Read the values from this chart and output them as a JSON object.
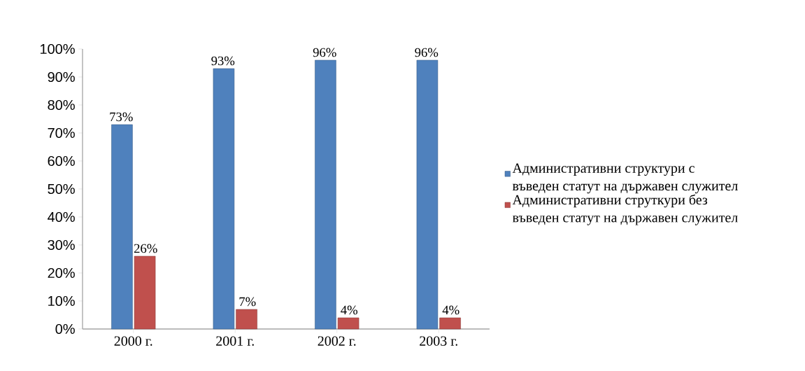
{
  "chart_data": {
    "type": "bar",
    "categories": [
      "2000 г.",
      "2001 г.",
      "2002 г.",
      "2003 г."
    ],
    "series": [
      {
        "name": "Административни структури с въведен статут на държавен служител",
        "color": "#4f81bd",
        "values": [
          73,
          93,
          96,
          96
        ],
        "value_labels": [
          "73%",
          "93%",
          "96%",
          "96%"
        ]
      },
      {
        "name": "Административни струткури без въведен статут на държавен служител",
        "color": "#c0504d",
        "values": [
          26,
          7,
          4,
          4
        ],
        "value_labels": [
          "26%",
          "7%",
          "4%",
          "4%"
        ]
      }
    ],
    "ylim": [
      0,
      100
    ],
    "yticks": [
      {
        "value": 0,
        "label": "0%"
      },
      {
        "value": 10,
        "label": "10%"
      },
      {
        "value": 20,
        "label": "20%"
      },
      {
        "value": 30,
        "label": "30%"
      },
      {
        "value": 40,
        "label": "40%"
      },
      {
        "value": 50,
        "label": "50%"
      },
      {
        "value": 60,
        "label": "60%"
      },
      {
        "value": 70,
        "label": "70%"
      },
      {
        "value": 80,
        "label": "80%"
      },
      {
        "value": 90,
        "label": "90%"
      },
      {
        "value": 100,
        "label": "100%"
      }
    ],
    "legend": "right",
    "grid": false
  }
}
